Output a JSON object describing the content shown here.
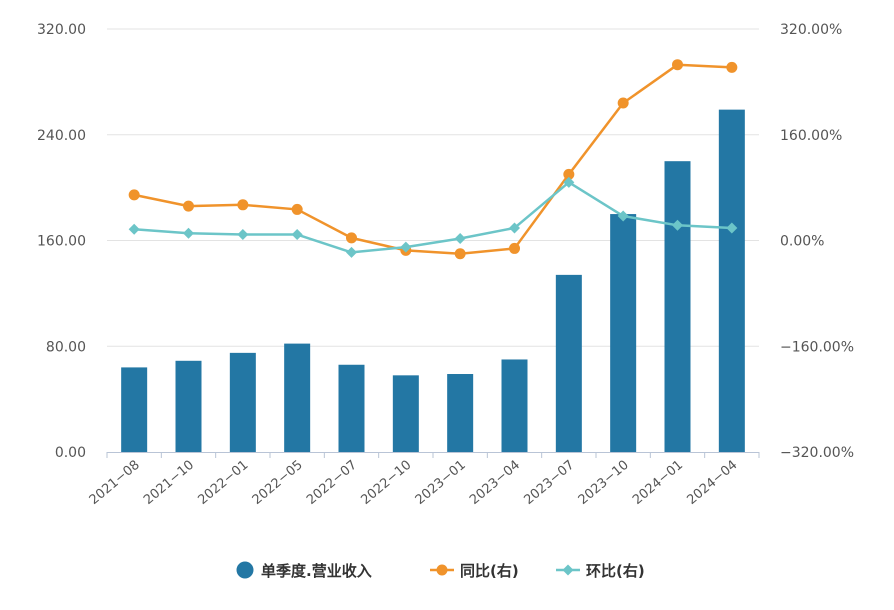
{
  "chart_data": {
    "type": "bar",
    "categories": [
      "2021-08",
      "2021-10",
      "2022-01",
      "2022-05",
      "2022-07",
      "2022-10",
      "2023-01",
      "2023-04",
      "2023-07",
      "2023-10",
      "2024-01",
      "2024-04"
    ],
    "x_tick_labels": [
      "2021−08",
      "2021−10",
      "2022−01",
      "2022−05",
      "2022−07",
      "2022−10",
      "2023−01",
      "2023−04",
      "2023−07",
      "2023−10",
      "2024−01",
      "2024−04"
    ],
    "series": [
      {
        "name": "单季度.营业收入",
        "type": "bar",
        "axis": "left",
        "color": "#2377a4",
        "values": [
          64,
          69,
          75,
          82,
          66,
          58,
          59,
          70,
          134,
          180,
          220,
          259
        ]
      },
      {
        "name": "同比(右)",
        "type": "line",
        "axis": "right",
        "color": "#f0932b",
        "marker": "circle",
        "values": [
          69,
          52,
          54,
          47,
          4,
          -15,
          -20,
          -12,
          100,
          208,
          266,
          262
        ]
      },
      {
        "name": "环比(右)",
        "type": "line",
        "axis": "right",
        "color": "#6cc5c8",
        "marker": "diamond",
        "values": [
          17,
          11,
          9,
          9,
          -18,
          -10,
          3,
          19,
          88,
          37,
          23,
          19
        ]
      }
    ],
    "y_left": {
      "ylim": [
        0,
        320
      ],
      "ticks": [
        0,
        80,
        160,
        240,
        320
      ],
      "tick_labels": [
        "0.00",
        "80.00",
        "160.00",
        "240.00",
        "320.00"
      ]
    },
    "y_right": {
      "ylim": [
        -320,
        320
      ],
      "ticks": [
        -320,
        -160,
        0,
        160,
        320
      ],
      "tick_labels": [
        "−320.00%",
        "−160.00%",
        "0.00%",
        "160.00%",
        "320.00%"
      ]
    },
    "grid": true,
    "legend_position": "bottom-center"
  }
}
